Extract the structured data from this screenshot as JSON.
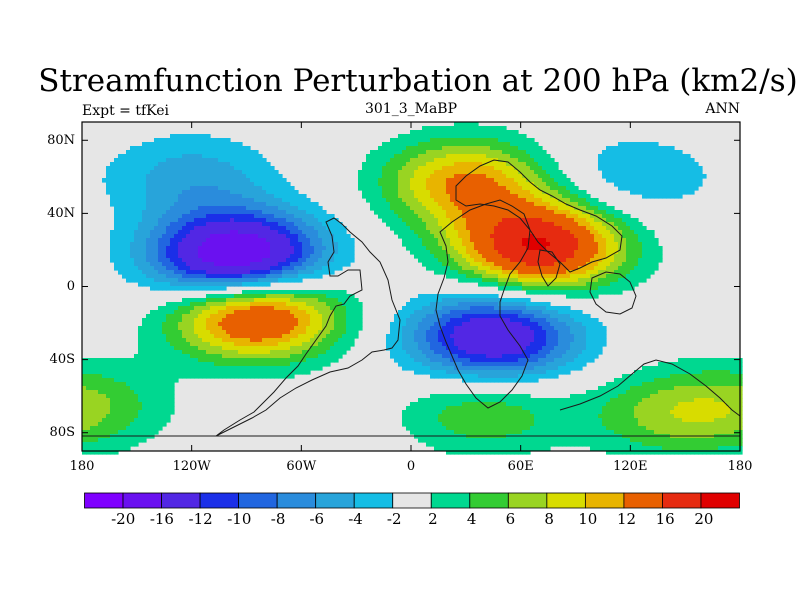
{
  "title": "Streamfunction Perturbation at 200 hPa (km2/s)",
  "left_label": "Expt = tfKei",
  "center_label": "301_3_MaBP",
  "right_label": "ANN",
  "lon_ticks": [
    "180",
    "120W",
    "60W",
    "0",
    "60E",
    "120E",
    "180"
  ],
  "lat_ticks": [
    "80N",
    "40N",
    "0",
    "40S",
    "80S"
  ],
  "colorbar": {
    "labels": [
      "-20",
      "-16",
      "-12",
      "-10",
      "-8",
      "-6",
      "-4",
      "-2",
      "2",
      "4",
      "6",
      "8",
      "10",
      "12",
      "16",
      "20"
    ],
    "colors": [
      "#7f00ff",
      "#6a11f0",
      "#5227e4",
      "#1b2fe8",
      "#2166e0",
      "#2a8cdc",
      "#28a4da",
      "#15bde5",
      "#e6e6e6",
      "#00d890",
      "#33cc33",
      "#99d422",
      "#d8dc00",
      "#e8b400",
      "#e86000",
      "#e62b10",
      "#e00000"
    ]
  },
  "field": {
    "background_color": "#e6e6e6",
    "features": [
      {
        "lon": -95,
        "lat": 16,
        "amp": -22
      },
      {
        "lon": -85,
        "lat": -15,
        "amp": 18
      },
      {
        "lon": 70,
        "lat": 22,
        "amp": 20
      },
      {
        "lon": 45,
        "lat": -28,
        "amp": -16
      },
      {
        "lon": 30,
        "lat": 57,
        "amp": 12
      },
      {
        "lon": -120,
        "lat": 60,
        "amp": -5
      },
      {
        "lon": 120,
        "lat": 60,
        "amp": -4
      },
      {
        "lon": -175,
        "lat": -65,
        "amp": 5
      },
      {
        "lon": 40,
        "lat": -68,
        "amp": 6
      },
      {
        "lon": 140,
        "lat": -70,
        "amp": 6
      }
    ]
  }
}
